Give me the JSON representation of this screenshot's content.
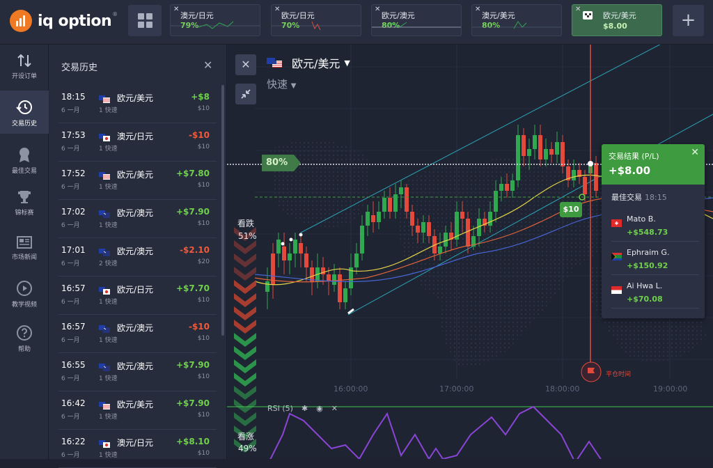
{
  "brand": {
    "name": "iq option",
    "reg": "®"
  },
  "asset_tabs": [
    {
      "name": "澳元/日元",
      "pct": "79%"
    },
    {
      "name": "欧元/日元",
      "pct": "70%"
    },
    {
      "name": "欧元/澳元",
      "pct": "80%"
    },
    {
      "name": "澳元/美元",
      "pct": "80%"
    },
    {
      "name": "欧元/美元",
      "pct": "$8.00",
      "active": true
    }
  ],
  "nav": [
    {
      "label": "开设订单",
      "icon": "arrows-updown-icon"
    },
    {
      "label": "交易历史",
      "icon": "history-clock-icon",
      "active": true
    },
    {
      "label": "最佳交易",
      "icon": "award-icon"
    },
    {
      "label": "锦标赛",
      "icon": "trophy-icon"
    },
    {
      "label": "市场新闻",
      "icon": "news-icon"
    },
    {
      "label": "教学视频",
      "icon": "play-icon"
    },
    {
      "label": "帮助",
      "icon": "help-icon"
    }
  ],
  "history": {
    "title": "交易历史",
    "rows": [
      {
        "time": "18:15",
        "date": "6 一月",
        "asset": "欧元/美元",
        "type": "1 快速",
        "profit": "+$8",
        "stake": "$10",
        "flag": "eu-us",
        "dir": "pos"
      },
      {
        "time": "17:53",
        "date": "6 一月",
        "asset": "澳元/日元",
        "type": "1 快速",
        "profit": "-$10",
        "stake": "$10",
        "flag": "au-jp",
        "dir": "neg"
      },
      {
        "time": "17:52",
        "date": "6 一月",
        "asset": "欧元/美元",
        "type": "1 快速",
        "profit": "+$7.80",
        "stake": "$10",
        "flag": "eu-us",
        "dir": "pos"
      },
      {
        "time": "17:02",
        "date": "6 一月",
        "asset": "欧元/澳元",
        "type": "1 快速",
        "profit": "+$7.90",
        "stake": "$10",
        "flag": "eu-au",
        "dir": "pos"
      },
      {
        "time": "17:01",
        "date": "6 一月",
        "asset": "欧元/澳元",
        "type": "2 快速",
        "profit": "-$2.10",
        "stake": "$20",
        "flag": "eu-au",
        "dir": "neg"
      },
      {
        "time": "16:57",
        "date": "6 一月",
        "asset": "欧元/日元",
        "type": "1 快速",
        "profit": "+$7.70",
        "stake": "$10",
        "flag": "eu-jp",
        "dir": "pos"
      },
      {
        "time": "16:57",
        "date": "6 一月",
        "asset": "欧元/澳元",
        "type": "1 快速",
        "profit": "-$10",
        "stake": "$10",
        "flag": "eu-au",
        "dir": "neg"
      },
      {
        "time": "16:55",
        "date": "6 一月",
        "asset": "欧元/澳元",
        "type": "1 快速",
        "profit": "+$7.90",
        "stake": "$10",
        "flag": "eu-au",
        "dir": "pos"
      },
      {
        "time": "16:42",
        "date": "6 一月",
        "asset": "欧元/美元",
        "type": "1 快速",
        "profit": "+$7.90",
        "stake": "$10",
        "flag": "eu-us",
        "dir": "pos"
      },
      {
        "time": "16:22",
        "date": "6 一月",
        "asset": "澳元/日元",
        "type": "1 快速",
        "profit": "+$8.10",
        "stake": "$10",
        "flag": "au-jp",
        "dir": "pos"
      }
    ]
  },
  "chart": {
    "asset": "欧元/美元",
    "mode": "快速",
    "payout": "80%",
    "sell_label": "看跌",
    "sell_pct": "51%",
    "buy_label": "看涨",
    "buy_pct": "49%",
    "trade_amount": "$10",
    "expiry_label": "平仓时间",
    "rsi_label": "RSI (5)",
    "time_ticks": [
      "16:00:00",
      "17:00:00",
      "18:00:00",
      "19:00:00"
    ],
    "colors": {
      "up": "#2fa84f",
      "down": "#e24a3b",
      "accent": "#3f9b3f"
    }
  },
  "result": {
    "title": "交易结果 (P/L)",
    "value": "+$8.00",
    "best_title": "最佳交易",
    "best_time": "18:15",
    "traders": [
      {
        "name": "Mato B.",
        "amount": "+$548.73",
        "flag": "ch"
      },
      {
        "name": "Ephraim G.",
        "amount": "+$150.92",
        "flag": "za"
      },
      {
        "name": "Ai Hwa L.",
        "amount": "+$70.08",
        "flag": "sg"
      }
    ]
  }
}
